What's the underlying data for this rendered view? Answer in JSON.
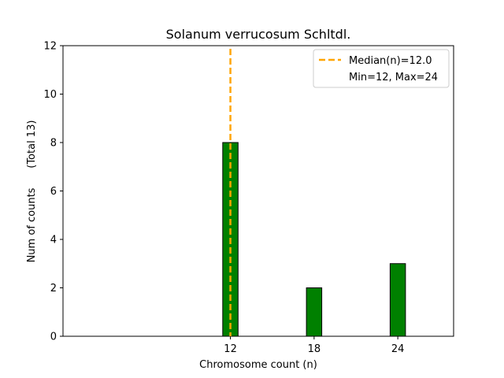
{
  "chart_data": {
    "type": "bar",
    "title": "Solanum verrucosum Schltdl.",
    "xlabel": "Chromosome count (n)",
    "ylabel": "Num of counts      (Total 13)",
    "x": [
      12,
      18,
      24
    ],
    "values": [
      8,
      2,
      3
    ],
    "xticks": [
      "12",
      "18",
      "24"
    ],
    "xlim": [
      0,
      28
    ],
    "ylim": [
      0,
      12
    ],
    "yticks": [
      0,
      2,
      4,
      6,
      8,
      10,
      12
    ],
    "bar_color": "#008000",
    "bar_edge_color": "#000000",
    "median": {
      "value": 12,
      "label": "Median(n)=12.0",
      "color": "#FFA500",
      "style": "dashed"
    },
    "legend": {
      "position": "top-right",
      "entries": [
        "Median(n)=12.0",
        "Min=12, Max=24"
      ]
    },
    "grid": false
  }
}
